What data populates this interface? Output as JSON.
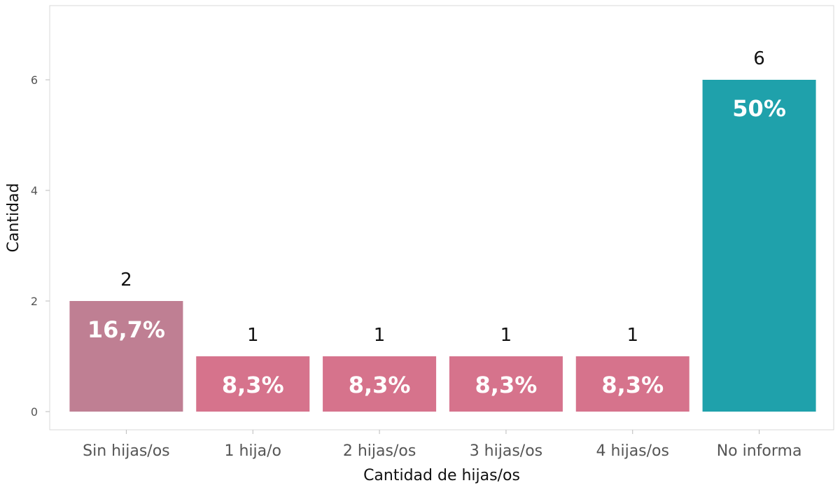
{
  "chart_data": {
    "type": "bar",
    "categories": [
      "Sin hijas/os",
      "1 hija/o",
      "2 hijas/os",
      "3 hijas/os",
      "4 hijas/os",
      "No informa"
    ],
    "values": [
      2,
      1,
      1,
      1,
      1,
      6
    ],
    "percent_labels": [
      "16,7%",
      "8,3%",
      "8,3%",
      "8,3%",
      "8,3%",
      "50%"
    ],
    "colors": [
      "#bf7f93",
      "#d6738c",
      "#d6738c",
      "#d6738c",
      "#d6738c",
      "#1fa1ab"
    ],
    "title": "",
    "xlabel": "Cantidad de hijas/os",
    "ylabel": "Cantidad",
    "ylim": [
      0,
      7.2
    ],
    "yticks": [
      0,
      2,
      4,
      6
    ],
    "grid": false,
    "legend": "none"
  }
}
